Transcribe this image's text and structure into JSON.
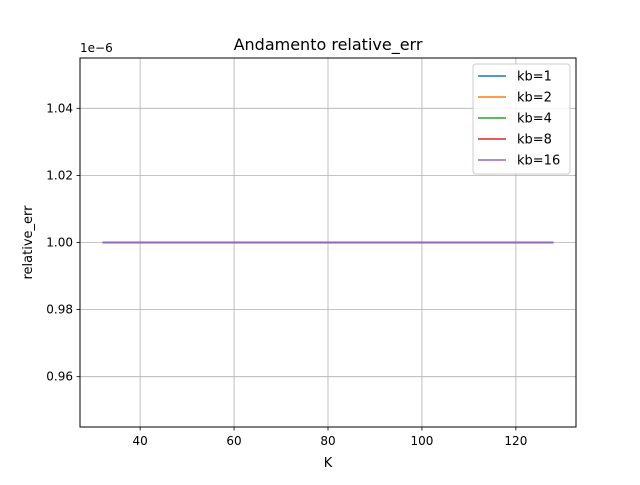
{
  "chart_data": {
    "type": "line",
    "title": "Andamento relative_err",
    "xlabel": "K",
    "ylabel": "relative_err",
    "y_offset_label": "1e−6",
    "xlim": [
      27.2,
      132.8
    ],
    "ylim": [
      0.945,
      1.055
    ],
    "x_ticks": [
      40,
      60,
      80,
      100,
      120
    ],
    "x_tick_labels": [
      "40",
      "60",
      "80",
      "100",
      "120"
    ],
    "y_ticks": [
      0.96,
      0.98,
      1.0,
      1.02,
      1.04
    ],
    "y_tick_labels": [
      "0.96",
      "0.98",
      "1.00",
      "1.02",
      "1.04"
    ],
    "grid": true,
    "legend_position": "top-right",
    "x": [
      32,
      64,
      128
    ],
    "series": [
      {
        "name": "kb=1",
        "color": "#1f77b4",
        "values": [
          1.0,
          1.0,
          1.0
        ]
      },
      {
        "name": "kb=2",
        "color": "#ff7f0e",
        "values": [
          1.0,
          1.0,
          1.0
        ]
      },
      {
        "name": "kb=4",
        "color": "#2ca02c",
        "values": [
          1.0,
          1.0,
          1.0
        ]
      },
      {
        "name": "kb=8",
        "color": "#d62728",
        "values": [
          1.0,
          1.0,
          1.0
        ]
      },
      {
        "name": "kb=16",
        "color": "#9467bd",
        "values": [
          1.0,
          1.0,
          1.0
        ]
      }
    ]
  }
}
